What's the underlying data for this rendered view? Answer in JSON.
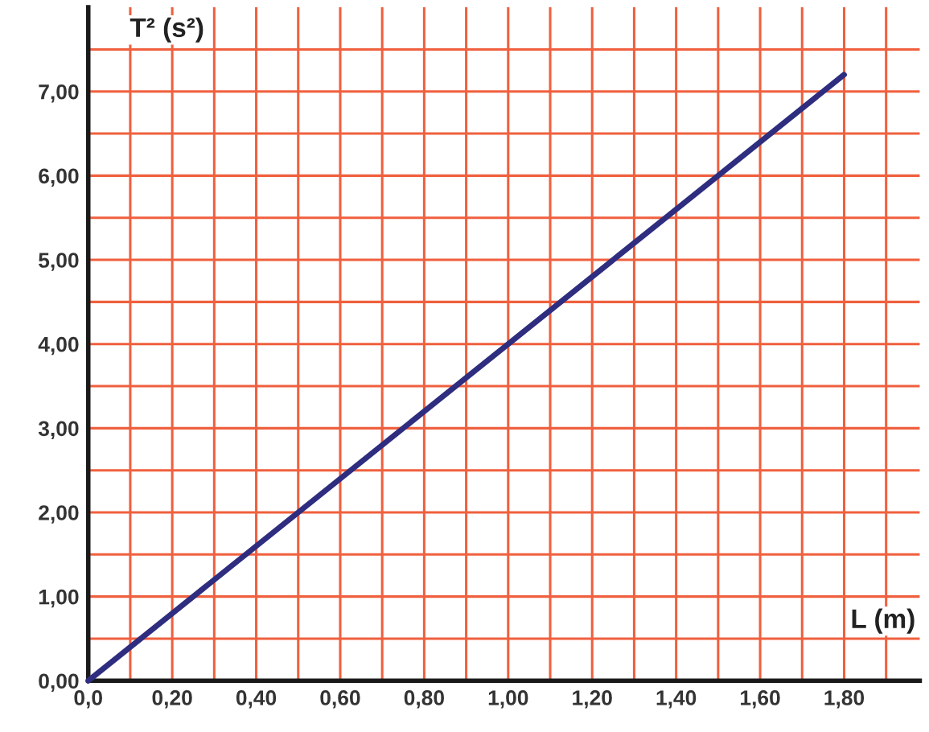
{
  "chart_data": {
    "type": "line",
    "xlabel": "L (m)",
    "ylabel": "T² (s²)",
    "x": [
      0,
      1.8
    ],
    "series": [
      {
        "color": "#2e2d7f",
        "values": [
          0,
          7.2
        ]
      }
    ],
    "xlim": [
      0,
      1.98
    ],
    "ylim": [
      0,
      8.0
    ],
    "xticks": [
      {
        "value": 0,
        "label": "0,0"
      },
      {
        "value": 0.1,
        "label": null
      },
      {
        "value": 0.2,
        "label": "0,20"
      },
      {
        "value": 0.3,
        "label": null
      },
      {
        "value": 0.4,
        "label": "0,40"
      },
      {
        "value": 0.5,
        "label": null
      },
      {
        "value": 0.6,
        "label": "0,60"
      },
      {
        "value": 0.7,
        "label": null
      },
      {
        "value": 0.8,
        "label": "0,80"
      },
      {
        "value": 0.9,
        "label": null
      },
      {
        "value": 1.0,
        "label": "1,00"
      },
      {
        "value": 1.1,
        "label": null
      },
      {
        "value": 1.2,
        "label": "1,20"
      },
      {
        "value": 1.3,
        "label": null
      },
      {
        "value": 1.4,
        "label": "1,40"
      },
      {
        "value": 1.5,
        "label": null
      },
      {
        "value": 1.6,
        "label": "1,60"
      },
      {
        "value": 1.7,
        "label": null
      },
      {
        "value": 1.8,
        "label": "1,80"
      },
      {
        "value": 1.9,
        "label": null
      }
    ],
    "yticks": [
      {
        "value": 0,
        "label": "0,00"
      },
      {
        "value": 0.5,
        "label": null
      },
      {
        "value": 1,
        "label": "1,00"
      },
      {
        "value": 1.5,
        "label": null
      },
      {
        "value": 2,
        "label": "2,00"
      },
      {
        "value": 2.5,
        "label": null
      },
      {
        "value": 3,
        "label": "3,00"
      },
      {
        "value": 3.5,
        "label": null
      },
      {
        "value": 4,
        "label": "4,00"
      },
      {
        "value": 4.5,
        "label": null
      },
      {
        "value": 5,
        "label": "5,00"
      },
      {
        "value": 5.5,
        "label": null
      },
      {
        "value": 6,
        "label": "6,00"
      },
      {
        "value": 6.5,
        "label": null
      },
      {
        "value": 7,
        "label": "7,00"
      },
      {
        "value": 7.5,
        "label": null
      }
    ],
    "grid": true,
    "line_style": "solid"
  }
}
